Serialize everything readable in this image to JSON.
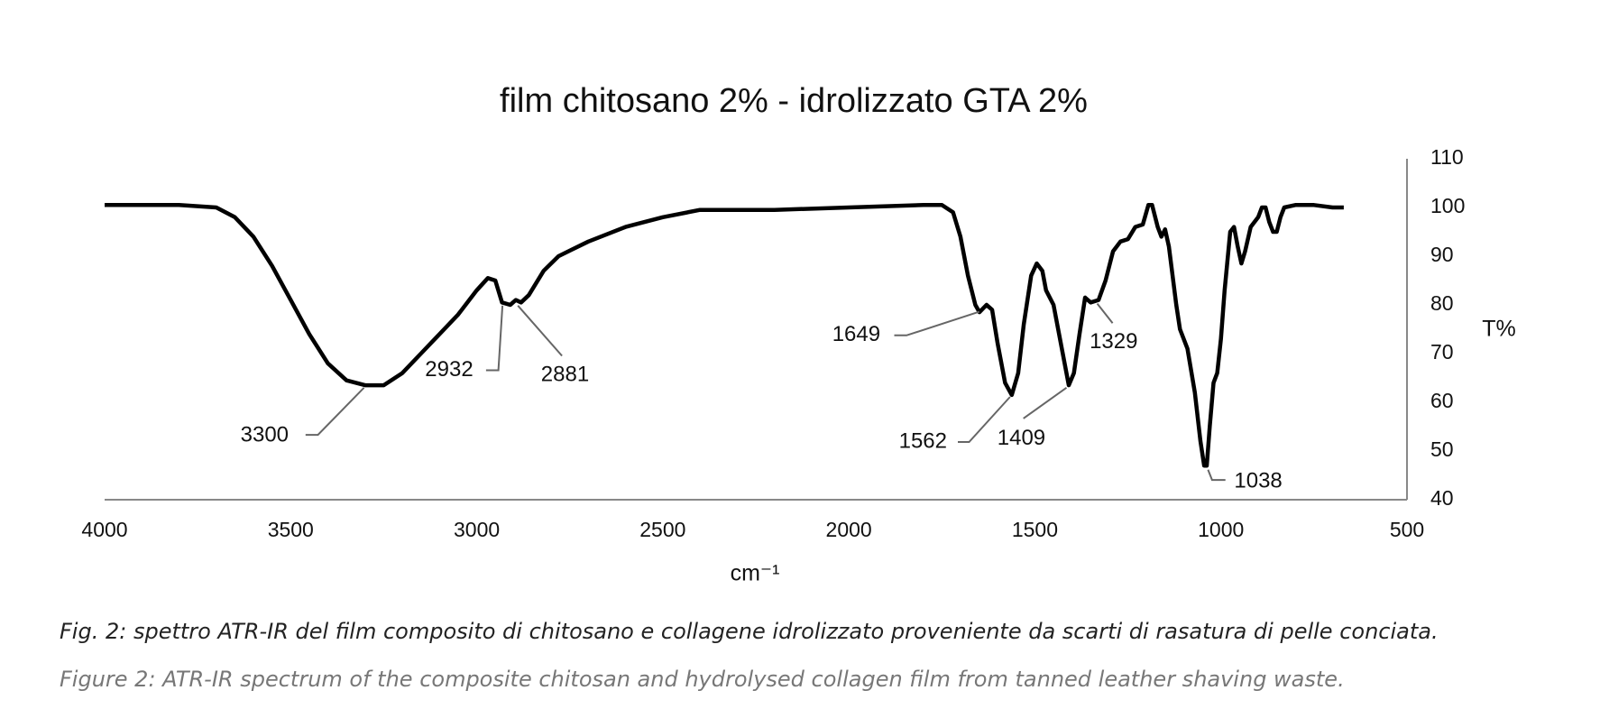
{
  "chart_data": {
    "type": "line",
    "title": "film chitosano 2% - idrolizzato GTA 2%",
    "x_label": "cm⁻¹",
    "y_label": "T%",
    "yaxis_position": "right",
    "grid": false,
    "xlim": [
      4000,
      500
    ],
    "xticks": [
      4000,
      3500,
      3000,
      2500,
      2000,
      1500,
      1000,
      500
    ],
    "ylim": [
      40,
      110
    ],
    "yticks": [
      40,
      50,
      60,
      70,
      80,
      90,
      100,
      110
    ],
    "series": [
      {
        "color": "#000000",
        "x": [
          4000,
          3800,
          3700,
          3650,
          3600,
          3550,
          3500,
          3450,
          3400,
          3350,
          3300,
          3250,
          3200,
          3150,
          3100,
          3050,
          3000,
          2970,
          2950,
          2932,
          2910,
          2895,
          2881,
          2860,
          2820,
          2780,
          2700,
          2600,
          2500,
          2400,
          2200,
          2000,
          1800,
          1750,
          1720,
          1700,
          1680,
          1660,
          1649,
          1630,
          1615,
          1600,
          1580,
          1562,
          1545,
          1530,
          1510,
          1495,
          1480,
          1470,
          1450,
          1430,
          1409,
          1395,
          1380,
          1365,
          1350,
          1329,
          1310,
          1290,
          1270,
          1250,
          1230,
          1210,
          1195,
          1185,
          1170,
          1160,
          1150,
          1140,
          1120,
          1110,
          1090,
          1070,
          1055,
          1045,
          1038,
          1030,
          1020,
          1010,
          1000,
          990,
          975,
          965,
          955,
          945,
          935,
          920,
          900,
          890,
          880,
          870,
          860,
          850,
          840,
          830,
          800,
          750,
          700,
          670
        ],
        "values": [
          100.5,
          100.5,
          100,
          98,
          94,
          88,
          81,
          74,
          68,
          64.5,
          63.5,
          63.5,
          66,
          70,
          74,
          78,
          83,
          85.5,
          85,
          80.5,
          80,
          81,
          80.5,
          82,
          87,
          90,
          93,
          96,
          98,
          99.5,
          99.5,
          100,
          100.5,
          100.5,
          99,
          94,
          86,
          80,
          78.5,
          80,
          79,
          72,
          64,
          61.5,
          66,
          76,
          86,
          88.5,
          87,
          83,
          80,
          72,
          63.5,
          66,
          74,
          81.5,
          80.5,
          81,
          85,
          91,
          93,
          93.5,
          96,
          96.5,
          100.5,
          100.5,
          96,
          94,
          95.5,
          92,
          80,
          75,
          71,
          62,
          52,
          47,
          47,
          55,
          64,
          66,
          73,
          83,
          95,
          96,
          92,
          88.5,
          91,
          96,
          98,
          100,
          100,
          97,
          95,
          95,
          98,
          100,
          100.5,
          100.5,
          100,
          100
        ]
      }
    ],
    "annotations": [
      "3300",
      "2932",
      "2881",
      "1649",
      "1562",
      "1409",
      "1329",
      "1038"
    ]
  },
  "figure": {
    "caption": "Fig. 2: spettro ATR-IR del film composito di chitosano e collagene idrolizzato proveniente da scarti di rasatura di pelle conciata.",
    "caption_en": "Figure 2: ATR-IR spectrum of the composite chitosan and hydrolysed collagen film from tanned leather shaving waste."
  }
}
